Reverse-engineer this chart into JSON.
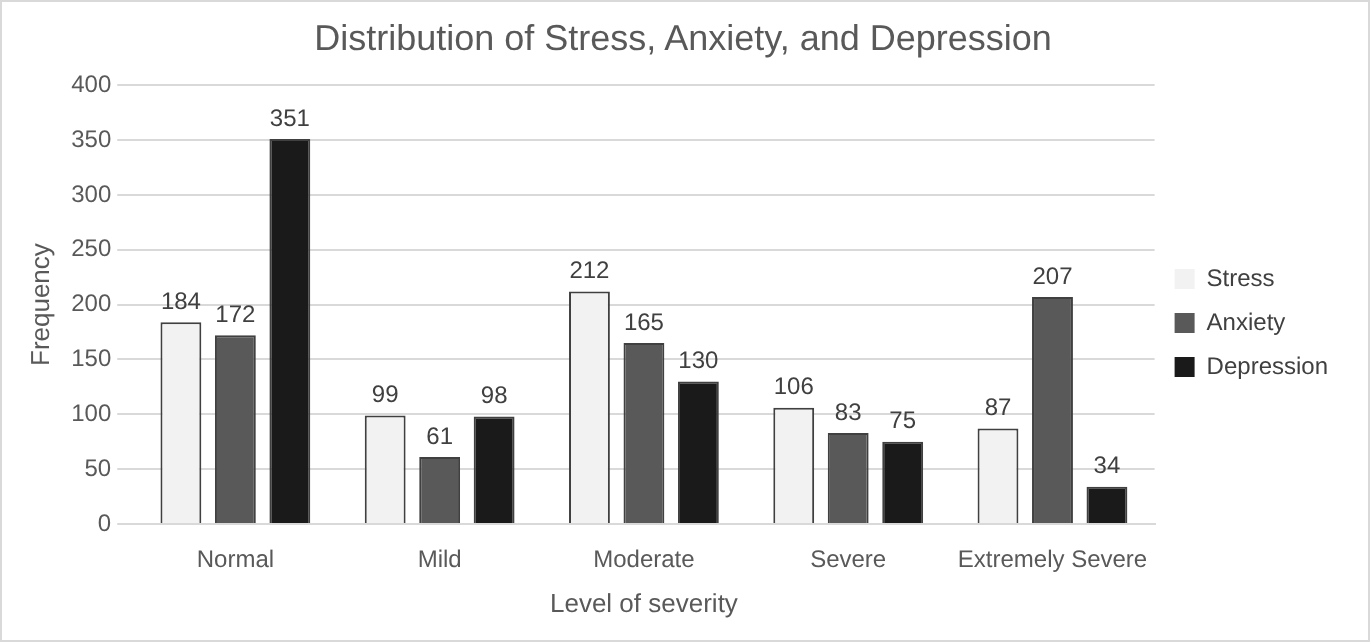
{
  "chart_data": {
    "type": "bar",
    "title": "Distribution of Stress, Anxiety, and Depression",
    "xlabel": "Level of severity",
    "ylabel": "Frequency",
    "categories": [
      "Normal",
      "Mild",
      "Moderate",
      "Severe",
      "Extremely Severe"
    ],
    "series": [
      {
        "name": "Stress",
        "color": "#f2f2f2",
        "values": [
          184,
          99,
          212,
          106,
          87
        ]
      },
      {
        "name": "Anxiety",
        "color": "#595959",
        "values": [
          172,
          61,
          165,
          83,
          207
        ]
      },
      {
        "name": "Depression",
        "color": "#1a1a1a",
        "values": [
          351,
          98,
          130,
          75,
          34
        ]
      }
    ],
    "ylim": [
      0,
      400
    ],
    "yticks": [
      0,
      50,
      100,
      150,
      200,
      250,
      300,
      350,
      400
    ],
    "grid": "y",
    "legend": "right",
    "data_labels": true
  }
}
